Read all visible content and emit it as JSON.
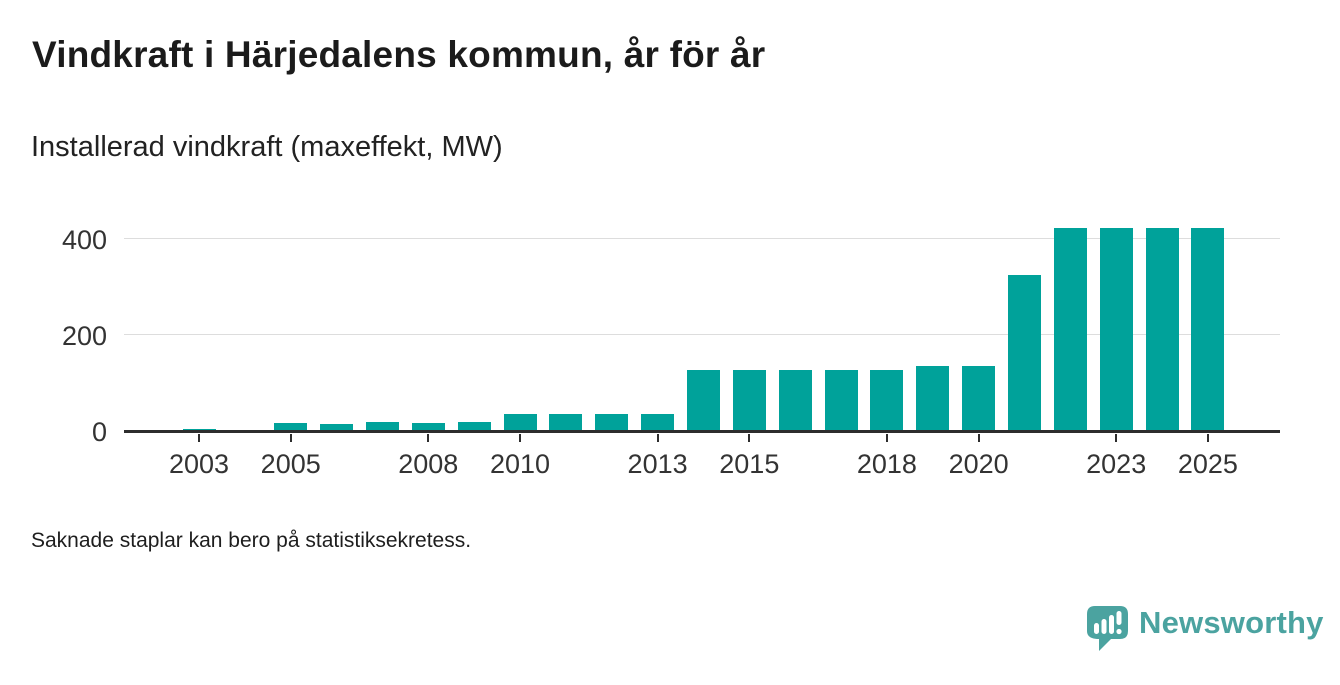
{
  "header": {
    "title": "Vindkraft i Härjedalens kommun, år för år",
    "subtitle": "Installerad vindkraft (maxeffekt, MW)"
  },
  "chart_data": {
    "type": "bar",
    "title": "Vindkraft i Härjedalens kommun, år för år",
    "subtitle_unit_label": "Installerad vindkraft (maxeffekt, MW)",
    "categories": [
      2003,
      2004,
      2005,
      2006,
      2007,
      2008,
      2009,
      2010,
      2011,
      2012,
      2013,
      2014,
      2015,
      2016,
      2017,
      2018,
      2019,
      2020,
      2021,
      2022,
      2023,
      2024,
      2025
    ],
    "values": [
      5,
      3,
      17,
      15,
      18,
      17,
      19,
      36,
      35,
      35,
      36,
      127,
      127,
      127,
      127,
      127,
      136,
      136,
      324,
      422,
      422,
      422,
      422
    ],
    "xlabel": "",
    "ylabel": "MW",
    "ylim": [
      0,
      460
    ],
    "y_ticks": [
      0,
      200,
      400
    ],
    "x_tick_labels": [
      "2003",
      "2005",
      "2008",
      "2010",
      "2013",
      "2015",
      "2018",
      "2020",
      "2023",
      "2025"
    ],
    "grid": "horizontal-gridlines-at-200-and-400",
    "legend_position": "none",
    "bar_color": "#00a29a"
  },
  "footnote": "Saknade staplar kan bero på statistiksekretess.",
  "branding": {
    "wordmark": "Newsworthy",
    "color": "#4ba3a0",
    "icon": "speech-bubble-bar-chart-exclamation"
  }
}
